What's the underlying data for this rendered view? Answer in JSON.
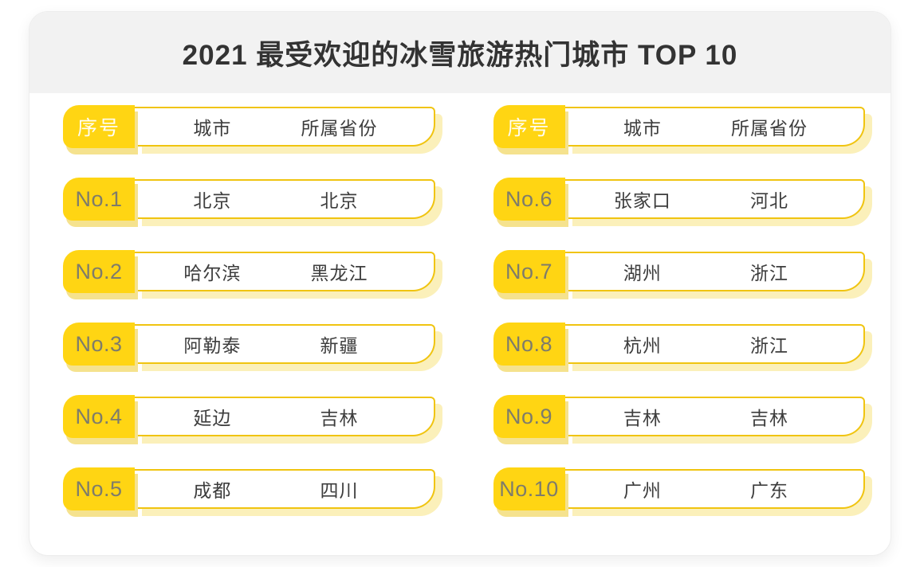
{
  "title": "2021 最受欢迎的冰雪旅游热门城市 TOP 10",
  "table": {
    "header": {
      "no": "序号",
      "city": "城市",
      "province": "所属省份"
    },
    "columns": [
      {
        "rows": [
          {
            "no": "No.1",
            "city": "北京",
            "province": "北京"
          },
          {
            "no": "No.2",
            "city": "哈尔滨",
            "province": "黑龙江"
          },
          {
            "no": "No.3",
            "city": "阿勒泰",
            "province": "新疆"
          },
          {
            "no": "No.4",
            "city": "延边",
            "province": "吉林"
          },
          {
            "no": "No.5",
            "city": "成都",
            "province": "四川"
          }
        ]
      },
      {
        "rows": [
          {
            "no": "No.6",
            "city": "张家口",
            "province": "河北"
          },
          {
            "no": "No.7",
            "city": "湖州",
            "province": "浙江"
          },
          {
            "no": "No.8",
            "city": "杭州",
            "province": "浙江"
          },
          {
            "no": "No.9",
            "city": "吉林",
            "province": "吉林"
          },
          {
            "no": "No.10",
            "city": "广州",
            "province": "广东"
          }
        ]
      }
    ]
  },
  "colors": {
    "accent_yellow": "#FFD513",
    "pill_border": "#F0C410",
    "badge_shadow": "#F5E28E",
    "pill_shadow": "#FBF0BA",
    "header_band": "#F2F2F2",
    "title_text": "#333333",
    "cell_text": "#3D3D3D",
    "rank_text": "#7E7C6B",
    "header_badge_text": "#FFFDF2"
  },
  "chart_data": {
    "type": "table",
    "title": "2021 最受欢迎的冰雪旅游热门城市 TOP 10",
    "columns": [
      "序号",
      "城市",
      "所属省份"
    ],
    "rows": [
      [
        "No.1",
        "北京",
        "北京"
      ],
      [
        "No.2",
        "哈尔滨",
        "黑龙江"
      ],
      [
        "No.3",
        "阿勒泰",
        "新疆"
      ],
      [
        "No.4",
        "延边",
        "吉林"
      ],
      [
        "No.5",
        "成都",
        "四川"
      ],
      [
        "No.6",
        "张家口",
        "河北"
      ],
      [
        "No.7",
        "湖州",
        "浙江"
      ],
      [
        "No.8",
        "杭州",
        "浙江"
      ],
      [
        "No.9",
        "吉林",
        "吉林"
      ],
      [
        "No.10",
        "广州",
        "广东"
      ]
    ],
    "layout": "two-column ranking table: ranks 1-5 in left column, ranks 6-10 in right column"
  }
}
